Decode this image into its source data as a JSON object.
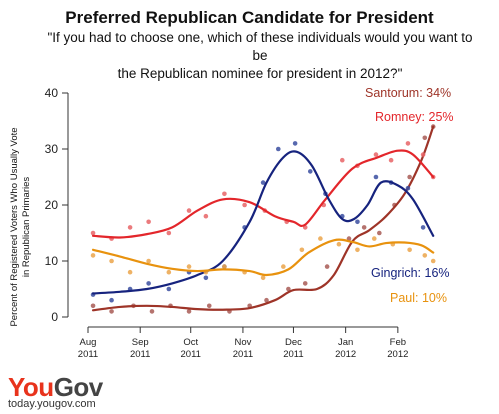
{
  "header": {
    "title": "Preferred Republican Candidate for President",
    "subtitle_line1": "\"If you had to choose one, which of these individuals would you want to be",
    "subtitle_line2": "the Republican nominee for president in 2012?\""
  },
  "brand": {
    "logo_you": "You",
    "logo_gov": "Gov",
    "url": "today.yougov.com"
  },
  "chart_data": {
    "type": "line",
    "title": "Preferred Republican Candidate for President",
    "ylabel": "Percent of Registered Voters Who Usually Vote in Republican Primaries",
    "ylabel_lines": [
      "Percent of Registered Voters Who Usually Vote",
      "in Republican Primaries"
    ],
    "xlabel": "",
    "ylim": [
      0,
      40
    ],
    "yticks": [
      0,
      10,
      20,
      30,
      40
    ],
    "x_range": [
      "2011-08-01",
      "2012-02-29"
    ],
    "xticks": [
      {
        "date": "2011-08-01",
        "line1": "Aug",
        "line2": "2011"
      },
      {
        "date": "2011-09-01",
        "line1": "Sep",
        "line2": "2011"
      },
      {
        "date": "2011-10-01",
        "line1": "Oct",
        "line2": "2011"
      },
      {
        "date": "2011-11-01",
        "line1": "Nov",
        "line2": "2011"
      },
      {
        "date": "2011-12-01",
        "line1": "Dec",
        "line2": "2011"
      },
      {
        "date": "2012-01-01",
        "line1": "Jan",
        "line2": "2012"
      },
      {
        "date": "2012-02-01",
        "line1": "Feb",
        "line2": "2012"
      }
    ],
    "grid": false,
    "series": [
      {
        "name": "Santorum",
        "end_label": "Santorum: 34%",
        "color": "#9e3428",
        "point_color": "#a85a55",
        "trend": [
          [
            "2011-08-04",
            1.2
          ],
          [
            "2011-08-20",
            1.8
          ],
          [
            "2011-09-05",
            2.0
          ],
          [
            "2011-09-20",
            1.8
          ],
          [
            "2011-10-05",
            1.4
          ],
          [
            "2011-10-20",
            1.3
          ],
          [
            "2011-11-05",
            1.6
          ],
          [
            "2011-11-20",
            3.0
          ],
          [
            "2011-12-01",
            4.8
          ],
          [
            "2011-12-15",
            5.0
          ],
          [
            "2011-12-25",
            7.5
          ],
          [
            "2012-01-05",
            13.5
          ],
          [
            "2012-01-15",
            15.5
          ],
          [
            "2012-01-25",
            18.0
          ],
          [
            "2012-02-05",
            22.0
          ],
          [
            "2012-02-15",
            28.0
          ],
          [
            "2012-02-22",
            34.0
          ]
        ],
        "points": [
          [
            "2011-08-04",
            2
          ],
          [
            "2011-08-15",
            1
          ],
          [
            "2011-08-28",
            2
          ],
          [
            "2011-09-08",
            1
          ],
          [
            "2011-09-19",
            2
          ],
          [
            "2011-09-30",
            1
          ],
          [
            "2011-10-12",
            2
          ],
          [
            "2011-10-24",
            1
          ],
          [
            "2011-11-05",
            2
          ],
          [
            "2011-11-15",
            3
          ],
          [
            "2011-11-28",
            5
          ],
          [
            "2011-12-08",
            6
          ],
          [
            "2011-12-21",
            9
          ],
          [
            "2012-01-03",
            14
          ],
          [
            "2012-01-12",
            16
          ],
          [
            "2012-01-21",
            15
          ],
          [
            "2012-01-30",
            20
          ],
          [
            "2012-02-08",
            25
          ],
          [
            "2012-02-17",
            32
          ],
          [
            "2012-02-22",
            34
          ]
        ]
      },
      {
        "name": "Romney",
        "end_label": "Romney: 25%",
        "color": "#e3262b",
        "point_color": "#e86466",
        "trend": [
          [
            "2011-08-04",
            14.5
          ],
          [
            "2011-08-20",
            14.2
          ],
          [
            "2011-09-05",
            14.8
          ],
          [
            "2011-09-20",
            16.0
          ],
          [
            "2011-10-05",
            19.0
          ],
          [
            "2011-10-20",
            21.0
          ],
          [
            "2011-11-05",
            20.5
          ],
          [
            "2011-11-20",
            18.0
          ],
          [
            "2011-12-01",
            17.0
          ],
          [
            "2011-12-08",
            16.5
          ],
          [
            "2011-12-20",
            21.0
          ],
          [
            "2012-01-05",
            26.5
          ],
          [
            "2012-01-20",
            28.5
          ],
          [
            "2012-02-01",
            29.7
          ],
          [
            "2012-02-10",
            29.0
          ],
          [
            "2012-02-22",
            25.0
          ]
        ],
        "points": [
          [
            "2011-08-04",
            15
          ],
          [
            "2011-08-15",
            14
          ],
          [
            "2011-08-26",
            16
          ],
          [
            "2011-09-06",
            17
          ],
          [
            "2011-09-18",
            15
          ],
          [
            "2011-09-30",
            19
          ],
          [
            "2011-10-10",
            18
          ],
          [
            "2011-10-21",
            22
          ],
          [
            "2011-11-02",
            20
          ],
          [
            "2011-11-14",
            19
          ],
          [
            "2011-11-27",
            17
          ],
          [
            "2011-12-08",
            16
          ],
          [
            "2011-12-19",
            20
          ],
          [
            "2011-12-30",
            28
          ],
          [
            "2012-01-08",
            27
          ],
          [
            "2012-01-19",
            29
          ],
          [
            "2012-01-28",
            28
          ],
          [
            "2012-02-07",
            31
          ],
          [
            "2012-02-16",
            29
          ],
          [
            "2012-02-22",
            25
          ]
        ]
      },
      {
        "name": "Gingrich",
        "end_label": "Gingrich: 16%",
        "color": "#16237e",
        "point_color": "#3a4ea0",
        "trend": [
          [
            "2011-08-04",
            4.2
          ],
          [
            "2011-08-20",
            4.5
          ],
          [
            "2011-09-05",
            5.0
          ],
          [
            "2011-09-20",
            6.0
          ],
          [
            "2011-10-05",
            7.5
          ],
          [
            "2011-10-20",
            10.0
          ],
          [
            "2011-11-05",
            17.0
          ],
          [
            "2011-11-15",
            24.0
          ],
          [
            "2011-11-25",
            28.5
          ],
          [
            "2011-12-03",
            29.5
          ],
          [
            "2011-12-12",
            27.0
          ],
          [
            "2011-12-22",
            21.0
          ],
          [
            "2011-12-30",
            17.5
          ],
          [
            "2012-01-06",
            17.5
          ],
          [
            "2012-01-14",
            20.0
          ],
          [
            "2012-01-22",
            24.0
          ],
          [
            "2012-02-01",
            23.5
          ],
          [
            "2012-02-10",
            21.0
          ],
          [
            "2012-02-22",
            14.5
          ]
        ],
        "points": [
          [
            "2011-08-04",
            4
          ],
          [
            "2011-08-15",
            3
          ],
          [
            "2011-08-26",
            5
          ],
          [
            "2011-09-06",
            6
          ],
          [
            "2011-09-18",
            5
          ],
          [
            "2011-09-30",
            8
          ],
          [
            "2011-10-10",
            7
          ],
          [
            "2011-10-21",
            9
          ],
          [
            "2011-11-02",
            16
          ],
          [
            "2011-11-13",
            24
          ],
          [
            "2011-11-22",
            30
          ],
          [
            "2011-12-02",
            31
          ],
          [
            "2011-12-11",
            26
          ],
          [
            "2011-12-20",
            22
          ],
          [
            "2011-12-30",
            18
          ],
          [
            "2012-01-08",
            17
          ],
          [
            "2012-01-19",
            25
          ],
          [
            "2012-01-28",
            24
          ],
          [
            "2012-02-07",
            23
          ],
          [
            "2012-02-16",
            16
          ]
        ]
      },
      {
        "name": "Paul",
        "end_label": "Paul: 10%",
        "color": "#e8920e",
        "point_color": "#eba44a",
        "trend": [
          [
            "2011-08-04",
            12.0
          ],
          [
            "2011-08-20",
            10.8
          ],
          [
            "2011-09-05",
            9.5
          ],
          [
            "2011-09-20",
            8.6
          ],
          [
            "2011-10-05",
            8.2
          ],
          [
            "2011-10-20",
            8.5
          ],
          [
            "2011-11-05",
            8.2
          ],
          [
            "2011-11-15",
            7.5
          ],
          [
            "2011-11-28",
            8.5
          ],
          [
            "2011-12-10",
            11.5
          ],
          [
            "2011-12-25",
            13.7
          ],
          [
            "2012-01-05",
            13.4
          ],
          [
            "2012-01-15",
            12.6
          ],
          [
            "2012-01-25",
            13.2
          ],
          [
            "2012-02-05",
            13.3
          ],
          [
            "2012-02-15",
            12.8
          ],
          [
            "2012-02-22",
            11.5
          ]
        ],
        "points": [
          [
            "2011-08-04",
            11
          ],
          [
            "2011-08-15",
            10
          ],
          [
            "2011-08-26",
            8
          ],
          [
            "2011-09-06",
            10
          ],
          [
            "2011-09-18",
            8
          ],
          [
            "2011-09-30",
            9
          ],
          [
            "2011-10-10",
            8
          ],
          [
            "2011-10-21",
            9
          ],
          [
            "2011-11-02",
            8
          ],
          [
            "2011-11-13",
            7
          ],
          [
            "2011-11-25",
            9
          ],
          [
            "2011-12-06",
            12
          ],
          [
            "2011-12-17",
            14
          ],
          [
            "2011-12-28",
            13
          ],
          [
            "2012-01-08",
            12
          ],
          [
            "2012-01-18",
            14
          ],
          [
            "2012-01-29",
            13
          ],
          [
            "2012-02-08",
            12
          ],
          [
            "2012-02-17",
            11
          ],
          [
            "2012-02-22",
            10
          ]
        ]
      }
    ]
  }
}
